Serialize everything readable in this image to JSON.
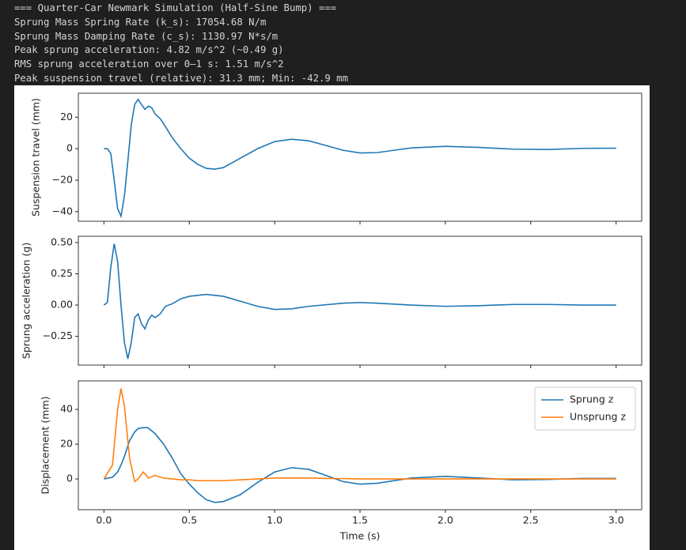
{
  "console": {
    "lines": [
      "=== Quarter-Car Newmark Simulation (Half-Sine Bump) ===",
      "Sprung Mass Spring Rate (k_s): 17054.68 N/m",
      "Sprung Mass Damping Rate (c_s): 1130.97 N*s/m",
      "Peak sprung acceleration: 4.82 m/s^2 (~0.49 g)",
      "RMS sprung acceleration over 0–1 s: 1.51 m/s^2",
      "Peak suspension travel (relative): 31.3 mm; Min: -42.9 mm"
    ]
  },
  "chart_data": [
    {
      "type": "line",
      "ylabel": "Suspension travel (mm)",
      "color": "#1f77b4",
      "x": [
        0,
        0.02,
        0.04,
        0.06,
        0.08,
        0.1,
        0.12,
        0.14,
        0.16,
        0.18,
        0.2,
        0.22,
        0.24,
        0.26,
        0.28,
        0.3,
        0.33,
        0.36,
        0.4,
        0.45,
        0.5,
        0.55,
        0.6,
        0.65,
        0.7,
        0.75,
        0.8,
        0.9,
        1.0,
        1.1,
        1.2,
        1.3,
        1.4,
        1.5,
        1.6,
        1.8,
        2.0,
        2.2,
        2.4,
        2.6,
        2.8,
        3.0
      ],
      "values": [
        0,
        0,
        -3,
        -20,
        -38,
        -42.9,
        -30,
        -8,
        15,
        28,
        31.3,
        28,
        25,
        27,
        26,
        22,
        19,
        14,
        7,
        0,
        -6,
        -10,
        -12.5,
        -13,
        -12,
        -9,
        -6,
        0,
        4.5,
        6,
        5,
        2,
        -1,
        -2.7,
        -2.5,
        0.5,
        1.5,
        0.8,
        -0.3,
        -0.5,
        0.2,
        0.3
      ],
      "xlim": [
        -0.15,
        3.15
      ],
      "ylim": [
        -46.1,
        35.2
      ],
      "xticks": [
        0,
        0.5,
        1,
        1.5,
        2,
        2.5,
        3
      ],
      "yticks": [
        {
          "value": -40,
          "label": "−40"
        },
        {
          "value": -20,
          "label": "−20"
        },
        0,
        20
      ]
    },
    {
      "type": "line",
      "ylabel": "Sprung acceleration (g)",
      "color": "#1f77b4",
      "x": [
        0,
        0.02,
        0.04,
        0.06,
        0.08,
        0.1,
        0.12,
        0.14,
        0.16,
        0.18,
        0.2,
        0.22,
        0.24,
        0.26,
        0.28,
        0.3,
        0.33,
        0.36,
        0.4,
        0.45,
        0.5,
        0.6,
        0.7,
        0.8,
        0.9,
        1.0,
        1.1,
        1.2,
        1.4,
        1.5,
        1.6,
        1.8,
        2.0,
        2.2,
        2.4,
        2.6,
        2.8,
        3.0
      ],
      "values": [
        0,
        0.02,
        0.3,
        0.49,
        0.35,
        0,
        -0.3,
        -0.43,
        -0.3,
        -0.1,
        -0.07,
        -0.15,
        -0.19,
        -0.12,
        -0.08,
        -0.1,
        -0.07,
        -0.01,
        0.01,
        0.05,
        0.07,
        0.085,
        0.07,
        0.03,
        -0.01,
        -0.035,
        -0.03,
        -0.01,
        0.015,
        0.02,
        0.015,
        0,
        -0.01,
        -0.005,
        0.005,
        0.005,
        0,
        0
      ],
      "xlim": [
        -0.15,
        3.15
      ],
      "ylim": [
        -0.48,
        0.55
      ],
      "xticks": [
        0,
        0.5,
        1,
        1.5,
        2,
        2.5,
        3
      ],
      "yticks": [
        {
          "value": -0.25,
          "label": "−0.25"
        },
        {
          "value": 0,
          "label": "0.00"
        },
        0.25,
        {
          "value": 0.5,
          "label": "0.50"
        }
      ]
    },
    {
      "type": "line",
      "ylabel": "Displacement (mm)",
      "xlabel": "Time (s)",
      "legend": "upper right",
      "x": [
        0,
        0.05,
        0.08,
        0.1,
        0.12,
        0.15,
        0.18,
        0.2,
        0.23,
        0.25,
        0.26,
        0.3,
        0.35,
        0.4,
        0.45,
        0.5,
        0.55,
        0.6,
        0.65,
        0.7,
        0.8,
        0.9,
        1.0,
        1.1,
        1.2,
        1.3,
        1.4,
        1.5,
        1.6,
        1.8,
        2.0,
        2.2,
        2.4,
        2.6,
        2.8,
        3.0
      ],
      "series": [
        {
          "name": "Sprung z",
          "color": "#1f77b4",
          "values": [
            0,
            1,
            4,
            8,
            13,
            22,
            27,
            29,
            29.5,
            29.5,
            29.3,
            26,
            20,
            12,
            3,
            -3,
            -8,
            -12,
            -13.5,
            -13,
            -9,
            -2,
            4,
            6.5,
            5.5,
            2,
            -1.5,
            -3,
            -2.5,
            0.5,
            1.5,
            0.5,
            -0.5,
            -0.3,
            0.3,
            0.3
          ]
        },
        {
          "name": "Unsprung z",
          "color": "#ff7f0e",
          "values": [
            0,
            8,
            40,
            52,
            42,
            12,
            -1.5,
            0,
            4,
            2,
            0.5,
            2,
            0.5,
            0,
            -0.5,
            -0.5,
            -1,
            -1,
            -1,
            -1,
            -0.5,
            0,
            0.5,
            0.5,
            0.5,
            0.3,
            0.2,
            0,
            0,
            0,
            0,
            0,
            0,
            0,
            0,
            0
          ]
        }
      ],
      "xlim": [
        -0.15,
        3.15
      ],
      "ylim": [
        -17.7,
        56.4
      ],
      "xticks": [
        {
          "value": 0,
          "label": "0.0"
        },
        0.5,
        {
          "value": 1,
          "label": "1.0"
        },
        1.5,
        {
          "value": 2,
          "label": "2.0"
        },
        2.5,
        {
          "value": 3,
          "label": "3.0"
        }
      ],
      "yticks": [
        0,
        20,
        40
      ]
    }
  ]
}
